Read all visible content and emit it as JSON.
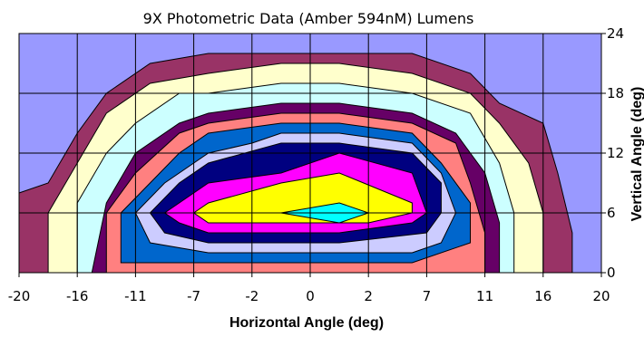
{
  "chart_data": {
    "type": "contour",
    "title": "9X Photometric Data (Amber 594nM) Lumens",
    "xlabel": "Horizontal Angle (deg)",
    "ylabel": "Vertical Angle (deg)",
    "x_tick_labels": [
      "-20",
      "-16",
      "-11",
      "-7",
      "-2",
      "0",
      "2",
      "7",
      "11",
      "16",
      "20"
    ],
    "y_tick_labels": [
      "0",
      "6",
      "12",
      "18",
      "24"
    ],
    "ylim": [
      0,
      24
    ],
    "grid": true,
    "background_color": "#9999ff",
    "band_colors": [
      "#993366",
      "#ffffcc",
      "#ccffff",
      "#660066",
      "#ff8080",
      "#0066cc",
      "#ccccff",
      "#000080",
      "#ff00ff",
      "#ffff00",
      "#00ffff"
    ],
    "bands": [
      {
        "outline": [
          [
            -20,
            0
          ],
          [
            -20,
            8
          ],
          [
            -18,
            9
          ],
          [
            -16,
            14
          ],
          [
            -14,
            18
          ],
          [
            -11,
            21
          ],
          [
            -7,
            22
          ],
          [
            -2,
            22
          ],
          [
            2,
            22
          ],
          [
            7,
            22
          ],
          [
            11,
            20
          ],
          [
            13,
            17
          ],
          [
            16,
            15
          ],
          [
            17,
            10
          ],
          [
            18,
            4
          ],
          [
            18,
            0
          ]
        ]
      },
      {
        "outline": [
          [
            -18,
            0
          ],
          [
            -18,
            6
          ],
          [
            -16,
            11
          ],
          [
            -14,
            16
          ],
          [
            -11,
            19
          ],
          [
            -7,
            20
          ],
          [
            -2,
            21
          ],
          [
            2,
            21
          ],
          [
            7,
            20
          ],
          [
            11,
            18
          ],
          [
            13,
            15
          ],
          [
            15,
            11
          ],
          [
            16,
            6
          ],
          [
            16,
            0
          ]
        ]
      },
      {
        "outline": [
          [
            -16,
            0
          ],
          [
            -16,
            7
          ],
          [
            -14,
            12
          ],
          [
            -12,
            15
          ],
          [
            -9,
            18
          ],
          [
            -7,
            18
          ],
          [
            -2,
            19
          ],
          [
            2,
            19
          ],
          [
            7,
            18
          ],
          [
            11,
            16
          ],
          [
            13,
            11
          ],
          [
            14,
            6
          ],
          [
            14,
            0
          ]
        ]
      },
      {
        "outline": [
          [
            -15,
            0
          ],
          [
            -14,
            7
          ],
          [
            -12,
            12
          ],
          [
            -9,
            15
          ],
          [
            -7,
            16
          ],
          [
            -2,
            17
          ],
          [
            2,
            17
          ],
          [
            7,
            16
          ],
          [
            10,
            14
          ],
          [
            12,
            10
          ],
          [
            13,
            5
          ],
          [
            13,
            0
          ]
        ]
      },
      {
        "outline": [
          [
            -14,
            0
          ],
          [
            -14,
            6
          ],
          [
            -12,
            10
          ],
          [
            -9,
            14
          ],
          [
            -7,
            15
          ],
          [
            -2,
            16
          ],
          [
            2,
            16
          ],
          [
            7,
            15
          ],
          [
            10,
            13
          ],
          [
            11,
            9
          ],
          [
            12,
            4
          ],
          [
            12,
            0
          ]
        ]
      },
      {
        "outline": [
          [
            -13,
            1
          ],
          [
            -13,
            6
          ],
          [
            -11,
            9
          ],
          [
            -9,
            12
          ],
          [
            -7,
            14
          ],
          [
            -2,
            15
          ],
          [
            2,
            15
          ],
          [
            7,
            14
          ],
          [
            9,
            11
          ],
          [
            11,
            7
          ],
          [
            11,
            3
          ],
          [
            7,
            1
          ],
          [
            2,
            1
          ],
          [
            -2,
            1
          ],
          [
            -7,
            1
          ]
        ]
      },
      {
        "outline": [
          [
            -12,
            6
          ],
          [
            -10,
            9
          ],
          [
            -7,
            12
          ],
          [
            -4,
            13
          ],
          [
            -2,
            14
          ],
          [
            2,
            14
          ],
          [
            7,
            13
          ],
          [
            9,
            10
          ],
          [
            10,
            6
          ],
          [
            9,
            3
          ],
          [
            7,
            2
          ],
          [
            2,
            2
          ],
          [
            -2,
            2
          ],
          [
            -7,
            2
          ],
          [
            -11,
            3
          ]
        ]
      },
      {
        "outline": [
          [
            -11,
            6
          ],
          [
            -9,
            9
          ],
          [
            -7,
            11
          ],
          [
            -2,
            13
          ],
          [
            2,
            13
          ],
          [
            7,
            12
          ],
          [
            9,
            9
          ],
          [
            9,
            6
          ],
          [
            8,
            4
          ],
          [
            2,
            3
          ],
          [
            -7,
            3
          ],
          [
            -10,
            4
          ]
        ]
      },
      {
        "outline": [
          [
            -10,
            6
          ],
          [
            -7,
            9
          ],
          [
            -2,
            10
          ],
          [
            2,
            12
          ],
          [
            7,
            10
          ],
          [
            8,
            6
          ],
          [
            7,
            5
          ],
          [
            2,
            4
          ],
          [
            -7,
            4
          ],
          [
            -9,
            5
          ]
        ]
      },
      {
        "outline": [
          [
            -8,
            6
          ],
          [
            -7,
            7
          ],
          [
            -2,
            9
          ],
          [
            2,
            10
          ],
          [
            7,
            7
          ],
          [
            7,
            6
          ],
          [
            4,
            5
          ],
          [
            2,
            5
          ],
          [
            -7,
            5
          ]
        ]
      },
      {
        "outline": [
          [
            -2,
            6
          ],
          [
            2,
            7
          ],
          [
            4,
            6
          ],
          [
            2,
            5
          ]
        ]
      }
    ]
  }
}
